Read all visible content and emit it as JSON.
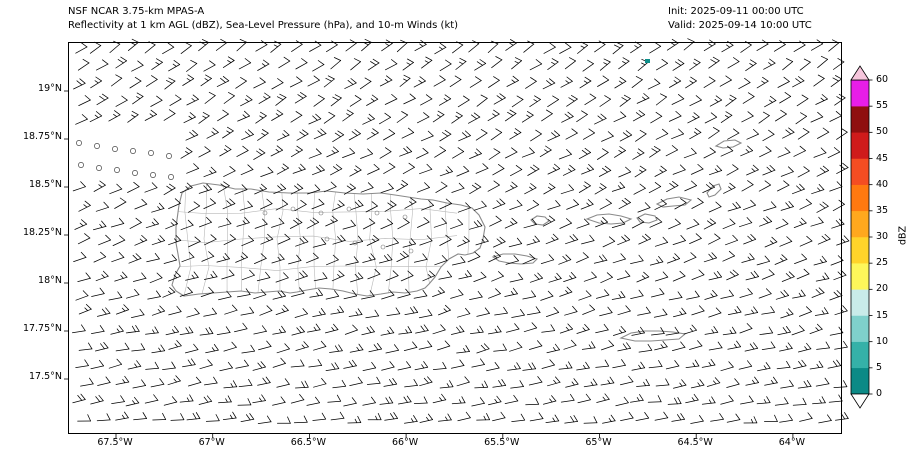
{
  "header": {
    "title_line1": "NSF NCAR 3.75-km MPAS-A",
    "title_line2": "Reflectivity at 1 km AGL (dBZ), Sea-Level Pressure (hPa), and 10-m Winds (kt)",
    "init_label": "Init: 2025-09-11 00:00 UTC",
    "valid_label": "Valid: 2025-09-14 10:00 UTC"
  },
  "map": {
    "lat_ticks": [
      "19°N",
      "18.75°N",
      "18.5°N",
      "18.25°N",
      "18°N",
      "17.75°N",
      "17.5°N"
    ],
    "lon_ticks": [
      "67.5°W",
      "67°W",
      "66.5°W",
      "66°W",
      "65.5°W",
      "65°W",
      "64.5°W",
      "64°W"
    ],
    "coastline_color": "#8a8a8a",
    "boundary_color": "#b8b8b8",
    "wind_barb_color": "#000000",
    "echo_color": "#0d8f8a"
  },
  "colorbar": {
    "label": "dBZ",
    "tick_labels": [
      "0",
      "5",
      "10",
      "15",
      "20",
      "25",
      "30",
      "35",
      "40",
      "45",
      "50",
      "55",
      "60"
    ],
    "segment_colors": [
      "#0c8a86",
      "#35b1a8",
      "#7fd0cb",
      "#c9ebe9",
      "#fdf75a",
      "#ffd42a",
      "#ffa81e",
      "#ff7910",
      "#f44d22",
      "#cf1b1b",
      "#8f0f0f",
      "#e81ee8"
    ],
    "under_color": "#ffffff",
    "over_color": "#f6c6dc"
  }
}
